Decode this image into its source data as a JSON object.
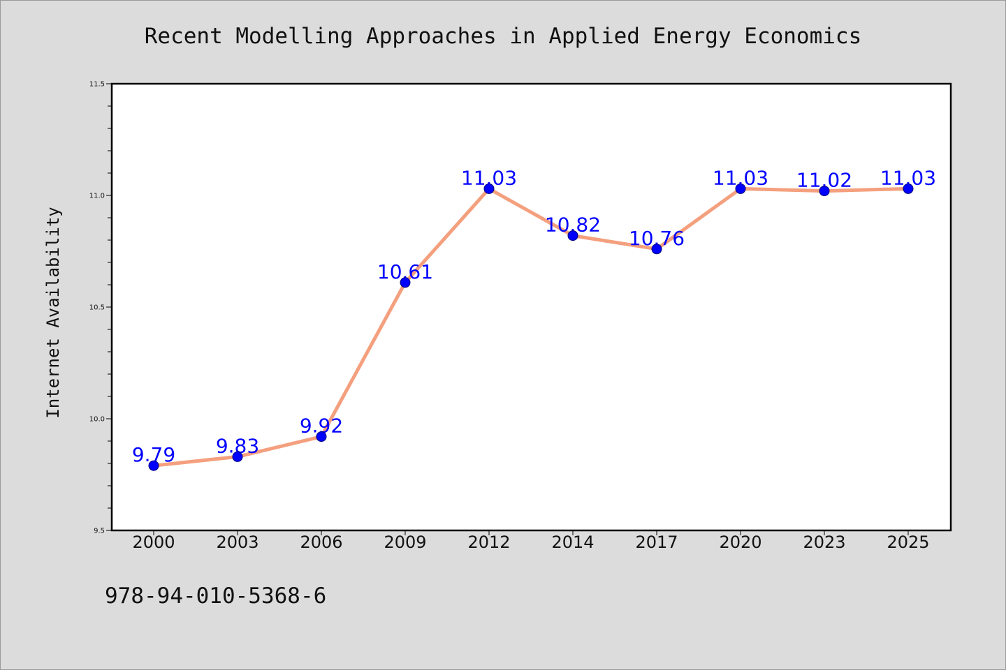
{
  "chart_data": {
    "type": "line",
    "title": "Recent Modelling Approaches in Applied Energy Economics",
    "xlabel": "",
    "ylabel": "Internet Availability",
    "categories": [
      "2000",
      "2003",
      "2006",
      "2009",
      "2012",
      "2014",
      "2017",
      "2020",
      "2023",
      "2025"
    ],
    "series": [
      {
        "values": [
          9.79,
          9.83,
          9.92,
          10.61,
          11.03,
          10.82,
          10.76,
          11.03,
          11.02,
          11.03
        ],
        "line_color": "#f4a07e",
        "marker_color": "#0000ff",
        "label_color": "#0000ff"
      }
    ],
    "ylim": [
      9.5,
      11.5
    ],
    "yticks": [
      "9.5",
      "10.0",
      "10.5",
      "11.0",
      "11.5"
    ],
    "grid": false,
    "legend": "none"
  },
  "footer_text": "978-94-010-5368-6",
  "colors": {
    "background": "#dcdcdc",
    "plot_background": "#ffffff",
    "line": "#f4a07e",
    "marker": "#0000ff",
    "data_label": "#0000ff"
  }
}
